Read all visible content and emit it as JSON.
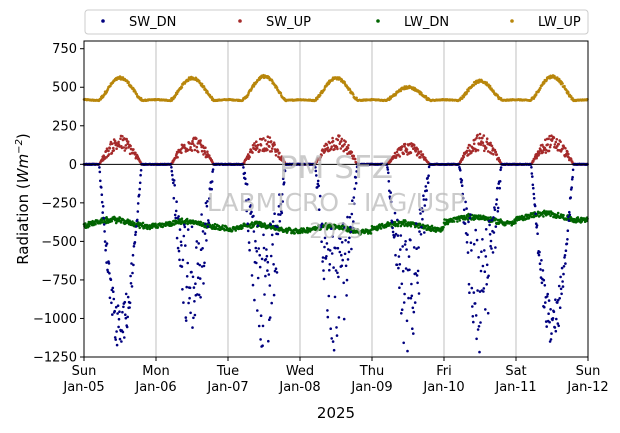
{
  "chart_data": {
    "type": "scatter",
    "ylabel": "Radiation (Wm^-2)",
    "ylabel_prefix": "Radiation (",
    "ylabel_unit_base": "Wm",
    "ylabel_unit_exp": "−2",
    "ylabel_suffix": ")",
    "xlabel": "2025",
    "ylim": [
      -1250,
      800
    ],
    "yticks": [
      -1250,
      -1000,
      -750,
      -500,
      -250,
      0,
      250,
      500,
      750
    ],
    "ytick_labels": [
      "−1250",
      "−1000",
      "−750",
      "−500",
      "−250",
      "0",
      "250",
      "500",
      "750"
    ],
    "xlim": [
      "2025-01-05",
      "2025-01-12"
    ],
    "xticks": [
      {
        "day": "Sun",
        "date": "Jan-05"
      },
      {
        "day": "Mon",
        "date": "Jan-06"
      },
      {
        "day": "Tue",
        "date": "Jan-07"
      },
      {
        "day": "Wed",
        "date": "Jan-08"
      },
      {
        "day": "Thu",
        "date": "Jan-09"
      },
      {
        "day": "Fri",
        "date": "Jan-10"
      },
      {
        "day": "Sat",
        "date": "Jan-11"
      },
      {
        "day": "Sun",
        "date": "Jan-12"
      }
    ],
    "grid": "vertical",
    "zero_line": true,
    "legend_position": "top",
    "watermark": [
      "PM SFZ",
      "LABMICRO - IAG/USP",
      "2025"
    ],
    "series": [
      {
        "name": "SW_DN",
        "color": "#00007f",
        "daily_peak": [
          -1220,
          -1150,
          -1230,
          -1240,
          -1240,
          -1230,
          -1180
        ],
        "daily_noon_mean": [
          -850,
          -850,
          -880,
          -720,
          -700,
          -800,
          -960
        ]
      },
      {
        "name": "SW_UP",
        "color": "#a52a2a",
        "daily_peak": [
          190,
          190,
          190,
          200,
          140,
          200,
          190
        ]
      },
      {
        "name": "LW_DN",
        "color": "#006400",
        "night_level": -400,
        "day_range": [
          -430,
          -380
        ],
        "daily_level": [
          -380,
          -390,
          -410,
          -420,
          -400,
          -360,
          -340
        ]
      },
      {
        "name": "LW_UP",
        "color": "#b8860b",
        "night_level": 420,
        "daily_peak": [
          560,
          560,
          570,
          560,
          500,
          540,
          570
        ]
      }
    ]
  }
}
